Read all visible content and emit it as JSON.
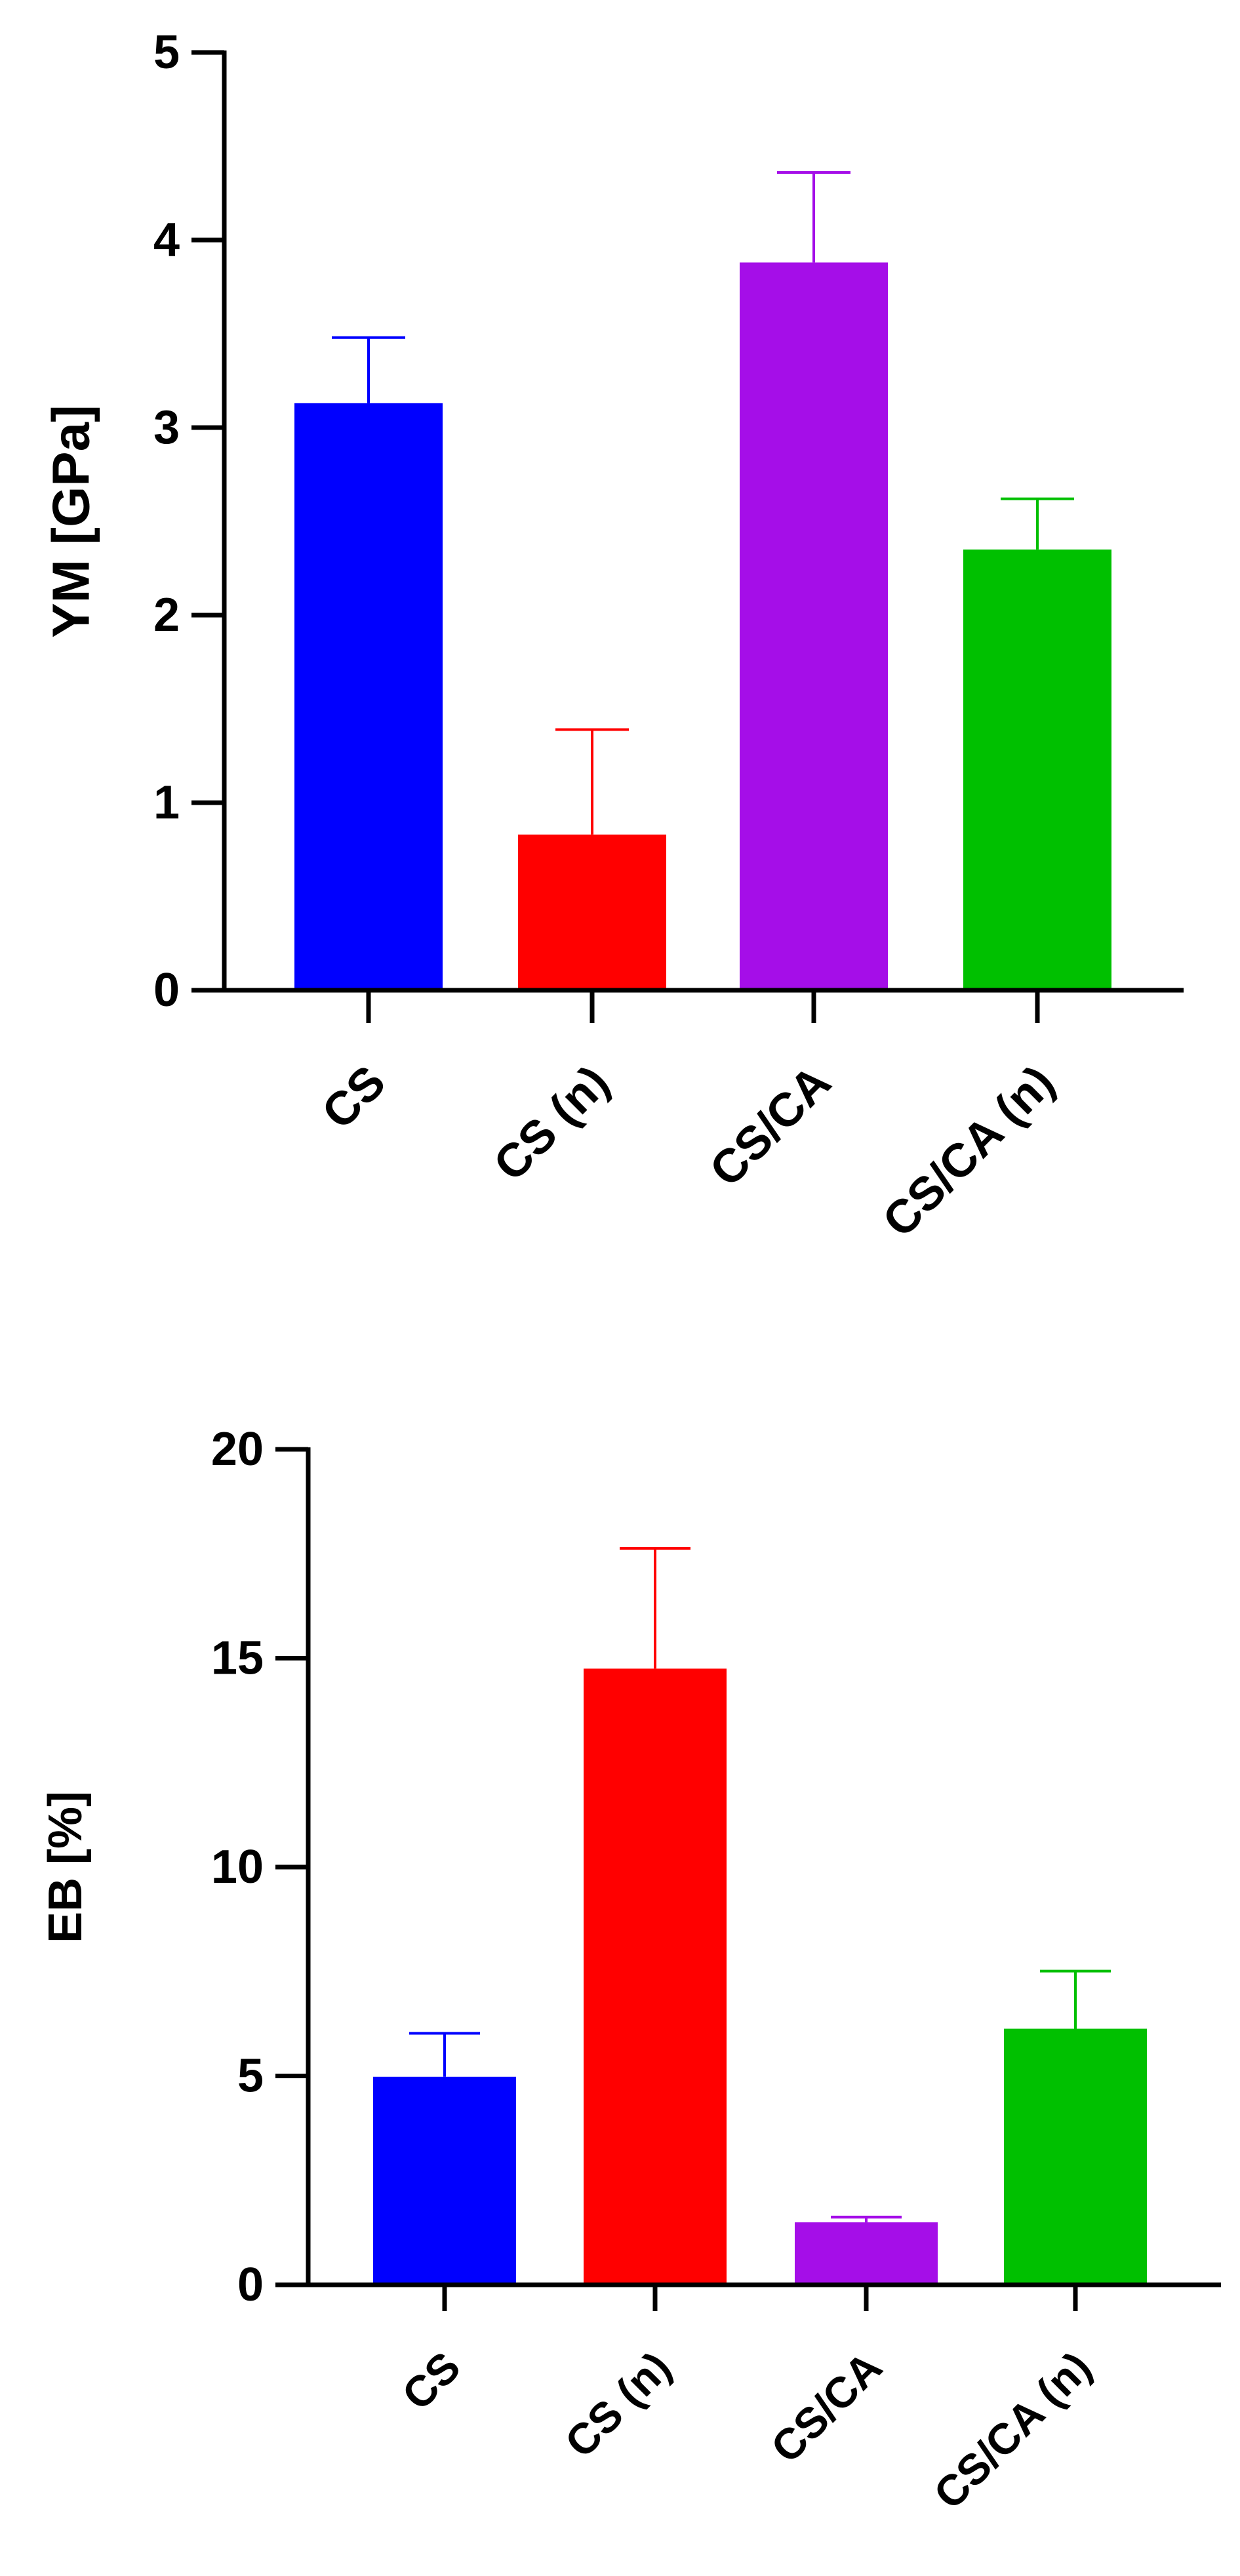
{
  "chart_data": [
    {
      "type": "bar",
      "ylabel": "YM [GPa]",
      "xlabel": "",
      "ylim": [
        0,
        5
      ],
      "yticks": [
        0,
        1,
        2,
        3,
        4,
        5
      ],
      "ytick_labels": [
        "0",
        "1",
        "2",
        "3",
        "4",
        "5"
      ],
      "categories": [
        "CS",
        "CS (n)",
        "CS/CA",
        "CS/CA (n)"
      ],
      "values": [
        3.13,
        0.83,
        3.88,
        2.35
      ],
      "errors": [
        0.35,
        0.56,
        0.48,
        0.27
      ],
      "colors": [
        "#0000ff",
        "#ff0000",
        "#a50ee8",
        "#00c000"
      ],
      "grid": false
    },
    {
      "type": "bar",
      "ylabel": "EB [%]",
      "xlabel": "",
      "ylim": [
        0,
        20
      ],
      "yticks": [
        0,
        5,
        10,
        15,
        20
      ],
      "ytick_labels": [
        "0",
        "5",
        "10",
        "15",
        "20"
      ],
      "categories": [
        "CS",
        "CS (n)",
        "CS/CA",
        "CS/CA (n)"
      ],
      "values": [
        4.98,
        14.75,
        1.5,
        6.13
      ],
      "errors": [
        1.04,
        2.88,
        0.12,
        1.38
      ],
      "colors": [
        "#0000ff",
        "#ff0000",
        "#a50ee8",
        "#00c000"
      ],
      "grid": false
    }
  ]
}
